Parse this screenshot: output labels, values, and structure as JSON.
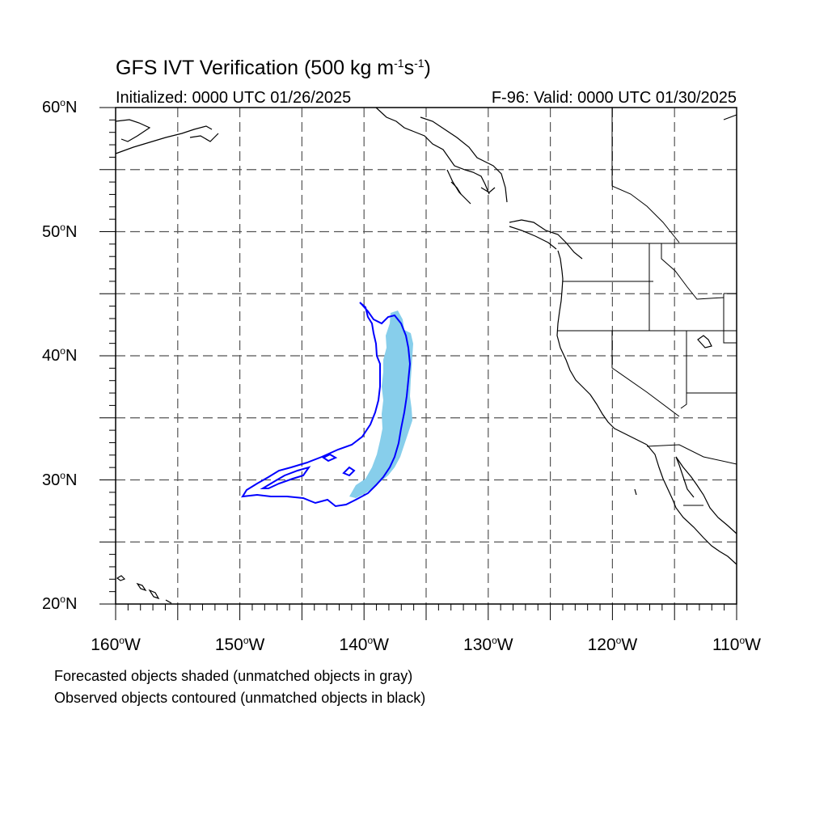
{
  "title": {
    "prefix": "GFS IVT Verification (500 kg m",
    "sup1": "-1",
    "mid": "s",
    "sup2": "-1",
    "suffix": ")"
  },
  "initialized": "Initialized: 0000 UTC 01/26/2025",
  "valid": "F-96: Valid: 0000 UTC 01/30/2025",
  "lat_labels": [
    {
      "num": "60",
      "sup": "o",
      "hem": "N"
    },
    {
      "num": "50",
      "sup": "o",
      "hem": "N"
    },
    {
      "num": "40",
      "sup": "o",
      "hem": "N"
    },
    {
      "num": "30",
      "sup": "o",
      "hem": "N"
    },
    {
      "num": "20",
      "sup": "o",
      "hem": "N"
    }
  ],
  "lon_labels": [
    {
      "num": "160",
      "sup": "o",
      "hem": "W"
    },
    {
      "num": "150",
      "sup": "o",
      "hem": "W"
    },
    {
      "num": "140",
      "sup": "o",
      "hem": "W"
    },
    {
      "num": "130",
      "sup": "o",
      "hem": "W"
    },
    {
      "num": "120",
      "sup": "o",
      "hem": "W"
    },
    {
      "num": "110",
      "sup": "o",
      "hem": "W"
    }
  ],
  "footnotes": [
    "Forecasted objects shaded (unmatched objects in gray)",
    "Observed objects contoured (unmatched objects in black)"
  ],
  "map": {
    "lon_range": [
      -160,
      -110
    ],
    "lat_range": [
      20,
      60
    ],
    "grid_lons": [
      -155,
      -150,
      -145,
      -140,
      -135,
      -130,
      -125,
      -120,
      -115
    ],
    "grid_lats": [
      25,
      30,
      35,
      40,
      45,
      50,
      55
    ],
    "colors": {
      "forecast_shade": "#87CEEB",
      "observed_contour": "#0000FF",
      "coast": "#000000",
      "grid": "#555555"
    }
  }
}
